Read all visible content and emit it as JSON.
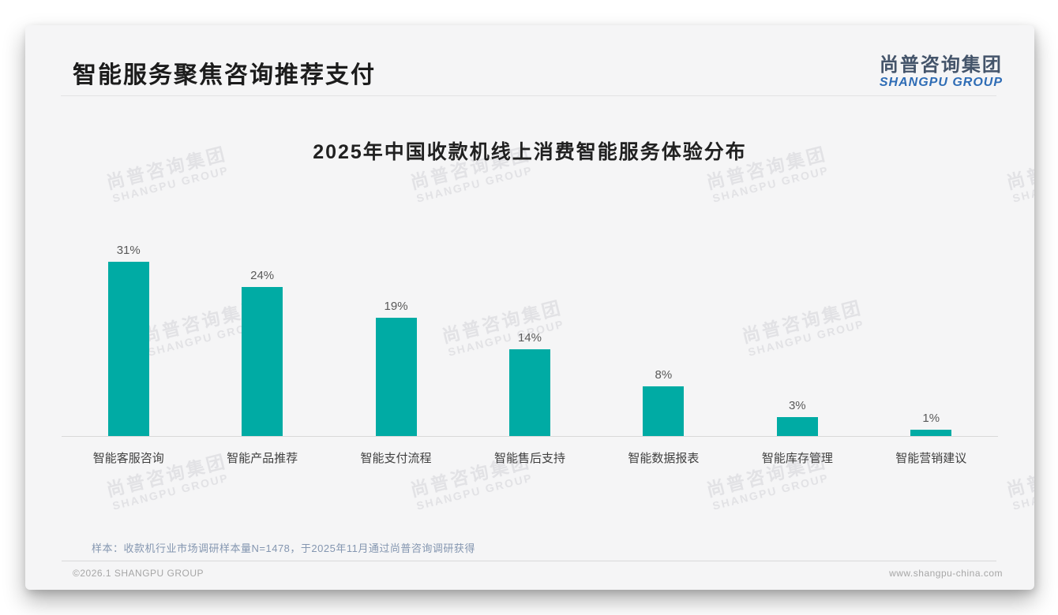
{
  "header": {
    "title": "智能服务聚焦咨询推荐支付"
  },
  "logo": {
    "cn": "尚普咨询集团",
    "en": "SHANGPU GROUP"
  },
  "watermark": {
    "cn": "尚普咨询集团",
    "en": "SHANGPU GROUP"
  },
  "note": "样本：收款机行业市场调研样本量N=1478，于2025年11月通过尚普咨询调研获得",
  "footer": {
    "left": "©2026.1 SHANGPU GROUP",
    "right": "www.shangpu-china.com"
  },
  "colors": {
    "bar": "#00ABA4",
    "logo_cn": "#44546A",
    "logo_en": "#2E6CB5",
    "note_text": "#8496B0",
    "axis_line": "#D9D9D9",
    "card_bg": "#F5F5F6"
  },
  "chart_data": {
    "type": "bar",
    "title": "2025年中国收款机线上消费智能服务体验分布",
    "categories": [
      "智能客服咨询",
      "智能产品推荐",
      "智能支付流程",
      "智能售后支持",
      "智能数据报表",
      "智能库存管理",
      "智能营销建议"
    ],
    "values": [
      31,
      24,
      19,
      14,
      8,
      3,
      1
    ],
    "value_labels": [
      "31%",
      "24%",
      "19%",
      "14%",
      "8%",
      "3%",
      "1%"
    ],
    "unit": "%",
    "xlabel": "",
    "ylabel": "",
    "ylim": [
      0,
      32
    ],
    "grid": false,
    "legend": false,
    "bar_color": "#00ABA4"
  }
}
